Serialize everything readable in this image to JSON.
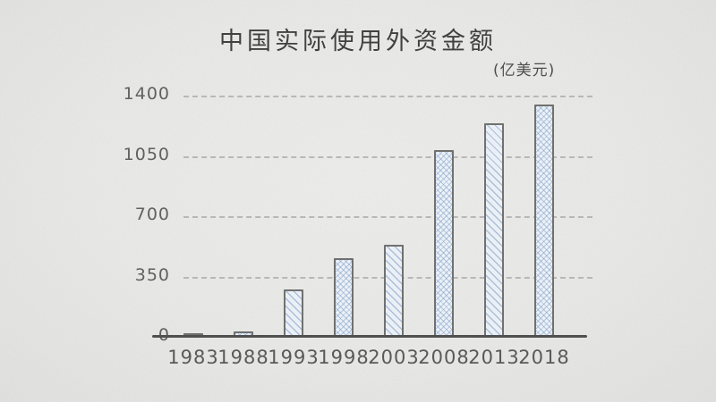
{
  "chart_data": {
    "type": "bar",
    "title": "中国实际使用外资金额",
    "unit_label": "(亿美元)",
    "categories": [
      "1983",
      "1988",
      "1993",
      "1998",
      "2003",
      "2008",
      "2013",
      "2018"
    ],
    "values": [
      9.2,
      31.9,
      275.2,
      454.6,
      535.1,
      1083.1,
      1239.1,
      1349.7
    ],
    "xlabel": "",
    "ylabel": "",
    "ylim": [
      0,
      1400
    ],
    "yticks": [
      0,
      350,
      700,
      1050,
      1400
    ],
    "grid": "horizontal-dashed",
    "legend": "none",
    "bar_hatch_styles": [
      "cross",
      "cross",
      "diagonal",
      "cross",
      "diagonal",
      "cross",
      "diagonal",
      "cross"
    ],
    "visual_style": "hand-drawn sketch on gray paper",
    "colors": {
      "bar_fill": "#eef3f9",
      "bar_hatch": "#7d9ec8",
      "bar_outline": "#6e6e6e",
      "gridline": "#b0b0b0",
      "axis_line": "#4c4c4c",
      "title_text": "#3c3c3c",
      "tick_text": "#5d5d5d",
      "background": "#e9e9e7"
    }
  }
}
